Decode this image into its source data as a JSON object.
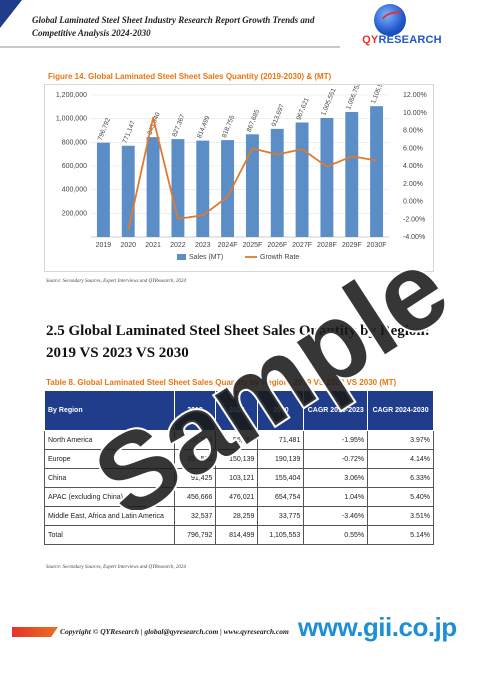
{
  "header": {
    "title": "Global Laminated Steel Sheet Industry Research Report Growth Trends and Competitive Analysis 2024-2030",
    "logo_prefix": "QY",
    "logo_suffix": "RESEARCH"
  },
  "figure": {
    "caption": "Figure 14.  Global Laminated Steel Sheet Sales Quantity (2019-2030) & (MT)",
    "source": "Source: Secondary Sources, Expert Interviews and QYResearch, 2024"
  },
  "chart_data": {
    "type": "bar",
    "categories": [
      "2019",
      "2020",
      "2021",
      "2022",
      "2023",
      "2024F",
      "2025F",
      "2026F",
      "2027F",
      "2028F",
      "2029F",
      "2030F"
    ],
    "series": [
      {
        "name": "Sales (MT)",
        "type": "bar",
        "color": "#5b8ec6",
        "values": [
          796792,
          771147,
          843940,
          827367,
          814499,
          818755,
          867685,
          913697,
          967621,
          1005551,
          1056755,
          1105553
        ]
      },
      {
        "name": "Growth Rate",
        "type": "line",
        "axis": "right",
        "color": "#e07a2e",
        "values": [
          null,
          -3.22,
          9.44,
          -1.96,
          -1.56,
          0.52,
          5.98,
          5.3,
          5.9,
          3.92,
          5.09,
          4.62
        ]
      }
    ],
    "data_labels": [
      "796,792",
      "771,147",
      "843,940",
      "827,367",
      "814,499",
      "818,755",
      "867,685",
      "913,697",
      "967,621",
      "1,005,551",
      "1,056,755",
      "1,105,553"
    ],
    "left_ticks": [
      "200,000",
      "400,000",
      "600,000",
      "800,000",
      "1,000,000",
      "1,200,000"
    ],
    "right_ticks": [
      "-4.00%",
      "-2.00%",
      "0.00%",
      "2.00%",
      "4.00%",
      "6.00%",
      "8.00%",
      "10.00%",
      "12.00%"
    ],
    "ylim_left": [
      0,
      1200000
    ],
    "ylim_right": [
      -4,
      12
    ],
    "legend_placement": "bottom",
    "grid": true
  },
  "section": {
    "title": "2.5  Global Laminated Steel Sheet Sales Quantity by Region: 2019 VS 2023 VS 2030"
  },
  "table": {
    "caption": "Table 8.  Global Laminated Steel Sheet Sales Quantity by Region: 2019 VS 2023 VS 2030 (MT)",
    "headers": [
      "By Region",
      "2019",
      "2023",
      "2030",
      "CAGR 2019-2023",
      "CAGR 2024-2030"
    ],
    "rows": [
      [
        "North America",
        "61,644",
        "56,959",
        "71,481",
        "-1.95%",
        "3.97%"
      ],
      [
        "Europe",
        "154,520",
        "150,139",
        "190,139",
        "-0.72%",
        "4.14%"
      ],
      [
        "China",
        "91,425",
        "103,121",
        "155,404",
        "3.06%",
        "6.33%"
      ],
      [
        "APAC (excluding China)",
        "456,666",
        "476,021",
        "654,754",
        "1.04%",
        "5.40%"
      ],
      [
        "Middle East, Africa and Latin America",
        "32,537",
        "28,259",
        "33,775",
        "-3.46%",
        "3.51%"
      ],
      [
        "Total",
        "796,792",
        "814,499",
        "1,105,553",
        "0.55%",
        "5.14%"
      ]
    ],
    "source": "Source: Secondary Sources, Expert Interviews and QYResearch, 2024"
  },
  "footer": {
    "text": "Copyright © QYResearch | global@qyresearch.com | www.qyresearch.com"
  },
  "watermark": {
    "text": "Sample",
    "site": "www.gii.co.jp"
  }
}
